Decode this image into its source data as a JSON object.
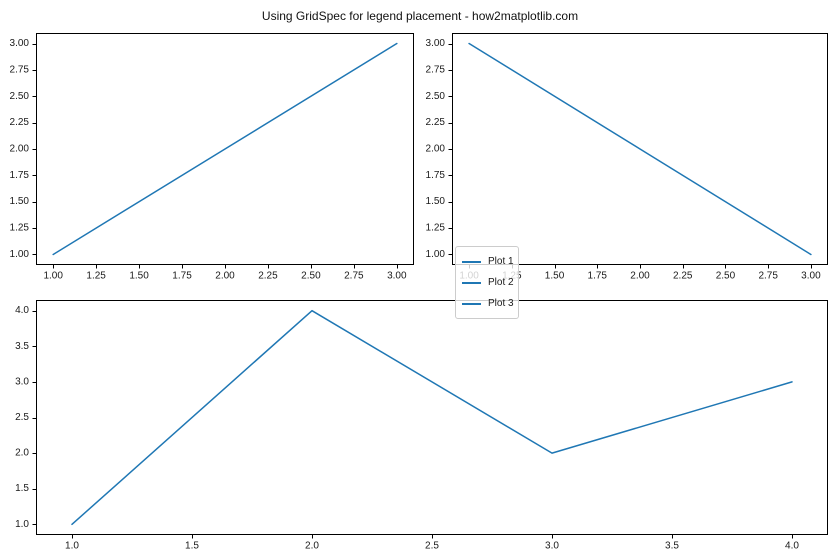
{
  "title": "Using GridSpec for legend placement - how2matplotlib.com",
  "legend": {
    "items": [
      {
        "label": "Plot 1"
      },
      {
        "label": "Plot 2"
      },
      {
        "label": "Plot 3"
      }
    ],
    "background": "rgba(255,255,255,0.8)",
    "border_color": "#cccccc"
  },
  "colors": {
    "line": "#1f77b4",
    "spine": "#000000",
    "tick_text": "#1a1a1a",
    "background": "#ffffff"
  },
  "chart_data": [
    {
      "type": "line",
      "name": "Plot 1",
      "position": "top-left",
      "x": [
        1,
        2,
        3
      ],
      "y": [
        1,
        2,
        3
      ],
      "xlim": [
        0.9,
        3.1
      ],
      "ylim": [
        0.9,
        3.1
      ],
      "xticks": [
        1.0,
        1.25,
        1.5,
        1.75,
        2.0,
        2.25,
        2.5,
        2.75,
        3.0
      ],
      "xtick_labels": [
        "1.00",
        "1.25",
        "1.50",
        "1.75",
        "2.00",
        "2.25",
        "2.50",
        "2.75",
        "3.00"
      ],
      "yticks": [
        1.0,
        1.25,
        1.5,
        1.75,
        2.0,
        2.25,
        2.5,
        2.75,
        3.0
      ],
      "ytick_labels": [
        "1.00",
        "1.25",
        "1.50",
        "1.75",
        "2.00",
        "2.25",
        "2.50",
        "2.75",
        "3.00"
      ],
      "line_color": "#1f77b4",
      "grid": false,
      "xlabel": "",
      "ylabel": ""
    },
    {
      "type": "line",
      "name": "Plot 2",
      "position": "top-right",
      "x": [
        1,
        2,
        3
      ],
      "y": [
        3,
        2,
        1
      ],
      "xlim": [
        0.9,
        3.1
      ],
      "ylim": [
        0.9,
        3.1
      ],
      "xticks": [
        1.0,
        1.25,
        1.5,
        1.75,
        2.0,
        2.25,
        2.5,
        2.75,
        3.0
      ],
      "xtick_labels": [
        "1.00",
        "1.25",
        "1.50",
        "1.75",
        "2.00",
        "2.25",
        "2.50",
        "2.75",
        "3.00"
      ],
      "yticks": [
        1.0,
        1.25,
        1.5,
        1.75,
        2.0,
        2.25,
        2.5,
        2.75,
        3.0
      ],
      "ytick_labels": [
        "1.00",
        "1.25",
        "1.50",
        "1.75",
        "2.00",
        "2.25",
        "2.50",
        "2.75",
        "3.00"
      ],
      "line_color": "#1f77b4",
      "grid": false,
      "xlabel": "",
      "ylabel": ""
    },
    {
      "type": "line",
      "name": "Plot 3",
      "position": "bottom",
      "x": [
        1,
        2,
        3,
        4
      ],
      "y": [
        1,
        4,
        2,
        3
      ],
      "xlim": [
        0.85,
        4.15
      ],
      "ylim": [
        0.85,
        4.15
      ],
      "xticks": [
        1.0,
        1.5,
        2.0,
        2.5,
        3.0,
        3.5,
        4.0
      ],
      "xtick_labels": [
        "1.0",
        "1.5",
        "2.0",
        "2.5",
        "3.0",
        "3.5",
        "4.0"
      ],
      "yticks": [
        1.0,
        1.5,
        2.0,
        2.5,
        3.0,
        3.5,
        4.0
      ],
      "ytick_labels": [
        "1.0",
        "1.5",
        "2.0",
        "2.5",
        "3.0",
        "3.5",
        "4.0"
      ],
      "line_color": "#1f77b4",
      "grid": false,
      "xlabel": "",
      "ylabel": ""
    }
  ]
}
